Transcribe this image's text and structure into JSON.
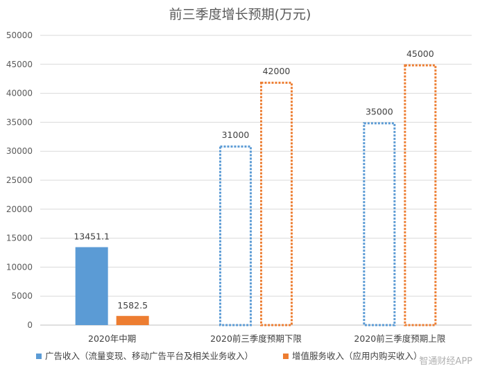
{
  "chart_data": {
    "type": "bar",
    "title": "前三季度增长预期(万元)",
    "categories": [
      "2020年中期",
      "2020前三季度预期下限",
      "2020前三季度预期上限"
    ],
    "series": [
      {
        "name": "广告收入（流量变现、移动广告平台及相关业务收入）",
        "color": "#5b9bd5",
        "styles": [
          "solid",
          "dotted",
          "dotted"
        ],
        "values": [
          13451.1,
          31000,
          35000
        ],
        "labels": [
          "13451.1",
          "31000",
          "35000"
        ]
      },
      {
        "name": "增值服务收入（应用内购买收入）",
        "color": "#ed7d31",
        "styles": [
          "solid",
          "dotted",
          "dotted"
        ],
        "values": [
          1582.5,
          42000,
          45000
        ],
        "labels": [
          "1582.5",
          "42000",
          "45000"
        ]
      }
    ],
    "ylim": [
      0,
      50000
    ],
    "yticks": [
      "0",
      "5000",
      "10000",
      "15000",
      "20000",
      "25000",
      "30000",
      "35000",
      "40000",
      "45000",
      "50000"
    ],
    "grid": true,
    "legend": "bottom"
  },
  "watermark": "智通财经APP"
}
